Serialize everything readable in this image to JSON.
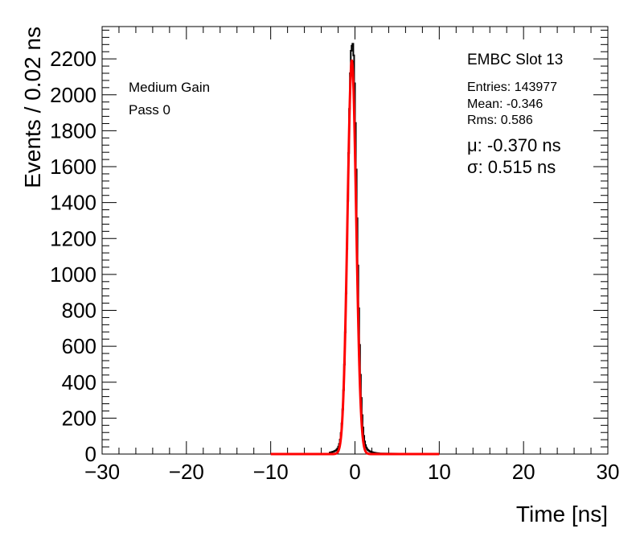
{
  "chart_data": {
    "type": "histogram",
    "xlabel": "Time [ns]",
    "ylabel": "Events / 0.02 ns",
    "xlim": [
      -30,
      30
    ],
    "ylim": [
      0,
      2380
    ],
    "x_ticks": [
      -30,
      -20,
      -10,
      0,
      10,
      20,
      30
    ],
    "x_tick_labels": [
      "−30",
      "−20",
      "−10",
      "0",
      "10",
      "20",
      "30"
    ],
    "y_ticks": [
      0,
      200,
      400,
      600,
      800,
      1000,
      1200,
      1400,
      1600,
      1800,
      2000,
      2200
    ],
    "y_tick_labels": [
      "0",
      "200",
      "400",
      "600",
      "800",
      "1000",
      "1200",
      "1400",
      "1600",
      "1800",
      "2000",
      "2200"
    ],
    "grid": false,
    "annotations": {
      "gain": "Medium Gain",
      "pass": "Pass 0",
      "module": "EMBC Slot 13",
      "entries": "Entries: 143977",
      "mean": "Mean: -0.346",
      "rms": "Rms: 0.586",
      "fit_mu": "μ: -0.370 ns",
      "fit_sigma": "σ: 0.515 ns"
    },
    "series": [
      {
        "kind": "histogram",
        "color": "#000000",
        "bin_width": 0.02,
        "peak_x": -0.37,
        "peak_y": 2260,
        "sigma": 0.515,
        "tail_left": {
          "amplitude": 160,
          "decay": 0.9
        },
        "tail_right": {
          "amplitude": 200,
          "decay": 0.8
        },
        "x_range": [
          -3,
          3
        ]
      },
      {
        "kind": "gaussian_fit",
        "color": "#ff0000",
        "mu": -0.37,
        "sigma": 0.515,
        "amplitude": 2190,
        "x_range": [
          -10,
          10
        ]
      }
    ]
  }
}
